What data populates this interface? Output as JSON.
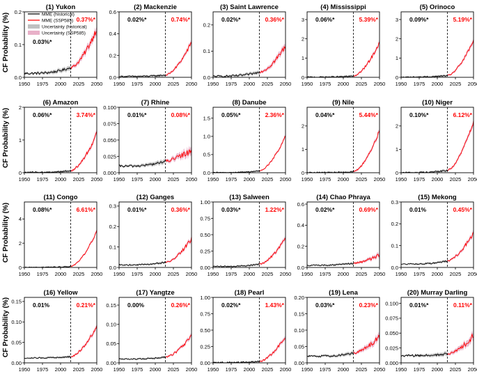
{
  "figure": {
    "ylabel": "CF Probability (%)",
    "x_ticks": [
      "1950",
      "1975",
      "2000",
      "2025",
      "2050"
    ],
    "colors": {
      "historical": "#000000",
      "future": "#ff0000",
      "hist_band": "#c0c0c0",
      "future_band": "#e8b0c8"
    },
    "legend": [
      "MME (historical)",
      "MME (SSP585)",
      "Uncertainty (historical)",
      "Uncertainty (SSP585)"
    ]
  },
  "chart_data": [
    {
      "type": "line",
      "title": "(1) Yukon",
      "ylim": [
        0,
        0.2
      ],
      "yticks": [
        "0.0",
        "0.1",
        "0.2"
      ],
      "hist_label": "0.03%*",
      "future_label": "0.37%*",
      "hist_mean": 0.012,
      "hist_end": 0.03,
      "future_end": 0.15,
      "noise": 0.012,
      "xlim": [
        1950,
        2050
      ],
      "split_year": 2014
    },
    {
      "type": "line",
      "title": "(2) Mackenzie",
      "ylim": [
        0,
        0.6
      ],
      "yticks": [
        "0.0",
        "0.2",
        "0.4",
        "0.6"
      ],
      "hist_label": "0.02%*",
      "future_label": "0.74%*",
      "hist_mean": 0.008,
      "hist_end": 0.02,
      "future_end": 0.32,
      "noise": 0.02,
      "xlim": [
        1950,
        2050
      ],
      "split_year": 2014
    },
    {
      "type": "line",
      "title": "(3) Saint Lawrence",
      "ylim": [
        0,
        0.25
      ],
      "yticks": [
        "0.0",
        "0.1",
        "0.2"
      ],
      "hist_label": "0.02%*",
      "future_label": "0.36%*",
      "hist_mean": 0.004,
      "hist_end": 0.02,
      "future_end": 0.12,
      "noise": 0.012,
      "xlim": [
        1950,
        2050
      ],
      "split_year": 2014
    },
    {
      "type": "line",
      "title": "(4) Mississippi",
      "ylim": [
        0,
        3.4
      ],
      "yticks": [
        "0",
        "1",
        "2",
        "3"
      ],
      "hist_label": "0.06%*",
      "future_label": "5.39%*",
      "hist_mean": 0.01,
      "hist_end": 0.06,
      "future_end": 1.8,
      "noise": 0.1,
      "xlim": [
        1950,
        2050
      ],
      "split_year": 2014
    },
    {
      "type": "line",
      "title": "(5) Orinoco",
      "ylim": [
        0,
        3.4
      ],
      "yticks": [
        "0",
        "1",
        "2",
        "3"
      ],
      "hist_label": "0.09%*",
      "future_label": "5.19%*",
      "hist_mean": 0.01,
      "hist_end": 0.09,
      "future_end": 1.9,
      "noise": 0.1,
      "xlim": [
        1950,
        2050
      ],
      "split_year": 2014
    },
    {
      "type": "line",
      "title": "(6) Amazon",
      "ylim": [
        0,
        2.0
      ],
      "yticks": [
        "0",
        "1",
        "2"
      ],
      "hist_label": "0.06%*",
      "future_label": "3.74%*",
      "hist_mean": 0.01,
      "hist_end": 0.06,
      "future_end": 1.2,
      "noise": 0.07,
      "xlim": [
        1950,
        2050
      ],
      "split_year": 2014
    },
    {
      "type": "line",
      "title": "(7) Rhine",
      "ylim": [
        0,
        0.1
      ],
      "yticks": [
        "0.000",
        "0.025",
        "0.050",
        "0.075",
        "0.100"
      ],
      "hist_label": "0.01%*",
      "future_label": "0.08%*",
      "hist_mean": 0.01,
      "hist_end": 0.018,
      "future_end": 0.035,
      "noise": 0.006,
      "xlim": [
        1950,
        2050
      ],
      "split_year": 2014
    },
    {
      "type": "line",
      "title": "(8) Danube",
      "ylim": [
        0,
        1.8
      ],
      "yticks": [
        "0.0",
        "0.5",
        "1.0",
        "1.5"
      ],
      "hist_label": "0.05%*",
      "future_label": "2.36%*",
      "hist_mean": 0.005,
      "hist_end": 0.05,
      "future_end": 1.0,
      "noise": 0.04,
      "xlim": [
        1950,
        2050
      ],
      "split_year": 2014
    },
    {
      "type": "line",
      "title": "(9) Nile",
      "ylim": [
        0,
        2.8
      ],
      "yticks": [
        "0",
        "1",
        "2"
      ],
      "hist_label": "0.04%*",
      "future_label": "5.44%*",
      "hist_mean": 0.005,
      "hist_end": 0.04,
      "future_end": 1.8,
      "noise": 0.09,
      "xlim": [
        1950,
        2050
      ],
      "split_year": 2014
    },
    {
      "type": "line",
      "title": "(10) Niger",
      "ylim": [
        0,
        2.8
      ],
      "yticks": [
        "0",
        "1",
        "2"
      ],
      "hist_label": "0.10%*",
      "future_label": "6.12%*",
      "hist_mean": 0.005,
      "hist_end": 0.1,
      "future_end": 2.2,
      "noise": 0.1,
      "xlim": [
        1950,
        2050
      ],
      "split_year": 2014
    },
    {
      "type": "line",
      "title": "(11) Congo",
      "ylim": [
        0,
        5.4
      ],
      "yticks": [
        "0",
        "2",
        "4"
      ],
      "hist_label": "0.08%*",
      "future_label": "6.61%*",
      "hist_mean": 0.01,
      "hist_end": 0.08,
      "future_end": 3.0,
      "noise": 0.12,
      "xlim": [
        1950,
        2050
      ],
      "split_year": 2014
    },
    {
      "type": "line",
      "title": "(12) Ganges",
      "ylim": [
        0,
        0.32
      ],
      "yticks": [
        "0.0",
        "0.1",
        "0.2",
        "0.3"
      ],
      "hist_label": "0.01%*",
      "future_label": "0.36%*",
      "hist_mean": 0.012,
      "hist_end": 0.025,
      "future_end": 0.14,
      "noise": 0.01,
      "xlim": [
        1950,
        2050
      ],
      "split_year": 2014
    },
    {
      "type": "line",
      "title": "(13) Salween",
      "ylim": [
        0,
        1.0
      ],
      "yticks": [
        "0.00",
        "0.25",
        "0.50",
        "0.75",
        "1.00"
      ],
      "hist_label": "0.03%*",
      "future_label": "1.22%*",
      "hist_mean": 0.015,
      "hist_end": 0.05,
      "future_end": 0.45,
      "noise": 0.03,
      "xlim": [
        1950,
        2050
      ],
      "split_year": 2014
    },
    {
      "type": "line",
      "title": "(14) Chao Phraya",
      "ylim": [
        0,
        0.62
      ],
      "yticks": [
        "0.0",
        "0.2",
        "0.4",
        "0.6"
      ],
      "hist_label": "0.02%*",
      "future_label": "0.69%*",
      "hist_mean": 0.02,
      "hist_end": 0.04,
      "future_end": 0.12,
      "noise": 0.02,
      "xlim": [
        1950,
        2050
      ],
      "split_year": 2014
    },
    {
      "type": "line",
      "title": "(15) Mekong",
      "ylim": [
        0,
        0.3
      ],
      "yticks": [
        "0.0",
        "0.1",
        "0.2",
        "0.3"
      ],
      "hist_label": "0.01%",
      "future_label": "0.45%*",
      "hist_mean": 0.015,
      "hist_end": 0.03,
      "future_end": 0.16,
      "noise": 0.01,
      "xlim": [
        1950,
        2050
      ],
      "split_year": 2014
    },
    {
      "type": "line",
      "title": "(16) Yellow",
      "ylim": [
        0,
        0.16
      ],
      "yticks": [
        "0.00",
        "0.05",
        "0.10",
        "0.15"
      ],
      "hist_label": "0.01%",
      "future_label": "0.21%*",
      "hist_mean": 0.012,
      "hist_end": 0.015,
      "future_end": 0.09,
      "noise": 0.005,
      "xlim": [
        1950,
        2050
      ],
      "split_year": 2014
    },
    {
      "type": "line",
      "title": "(17) Yangtze",
      "ylim": [
        0,
        0.17
      ],
      "yticks": [
        "0.00",
        "0.05",
        "0.10",
        "0.15"
      ],
      "hist_label": "0.00%",
      "future_label": "0.26%*",
      "hist_mean": 0.01,
      "hist_end": 0.015,
      "future_end": 0.07,
      "noise": 0.005,
      "xlim": [
        1950,
        2050
      ],
      "split_year": 2014
    },
    {
      "type": "line",
      "title": "(18) Pearl",
      "ylim": [
        0,
        1.0
      ],
      "yticks": [
        "0.00",
        "0.25",
        "0.50",
        "0.75",
        "1.00"
      ],
      "hist_label": "0.02%*",
      "future_label": "1.43%*",
      "hist_mean": 0.005,
      "hist_end": 0.02,
      "future_end": 0.4,
      "noise": 0.03,
      "xlim": [
        1950,
        2050
      ],
      "split_year": 2014
    },
    {
      "type": "line",
      "title": "(19) Lena",
      "ylim": [
        0,
        0.2
      ],
      "yticks": [
        "0.00",
        "0.05",
        "0.10",
        "0.15",
        "0.20"
      ],
      "hist_label": "0.03%*",
      "future_label": "0.23%*",
      "hist_mean": 0.02,
      "hist_end": 0.03,
      "future_end": 0.08,
      "noise": 0.01,
      "xlim": [
        1950,
        2050
      ],
      "split_year": 2014
    },
    {
      "type": "line",
      "title": "(20) Murray Darling",
      "ylim": [
        0,
        0.11
      ],
      "yticks": [
        "0.000",
        "0.025",
        "0.050",
        "0.075",
        "0.100"
      ],
      "hist_label": "0.01%*",
      "future_label": "0.11%*",
      "hist_mean": 0.012,
      "hist_end": 0.015,
      "future_end": 0.045,
      "noise": 0.006,
      "xlim": [
        1950,
        2050
      ],
      "split_year": 2014
    }
  ]
}
